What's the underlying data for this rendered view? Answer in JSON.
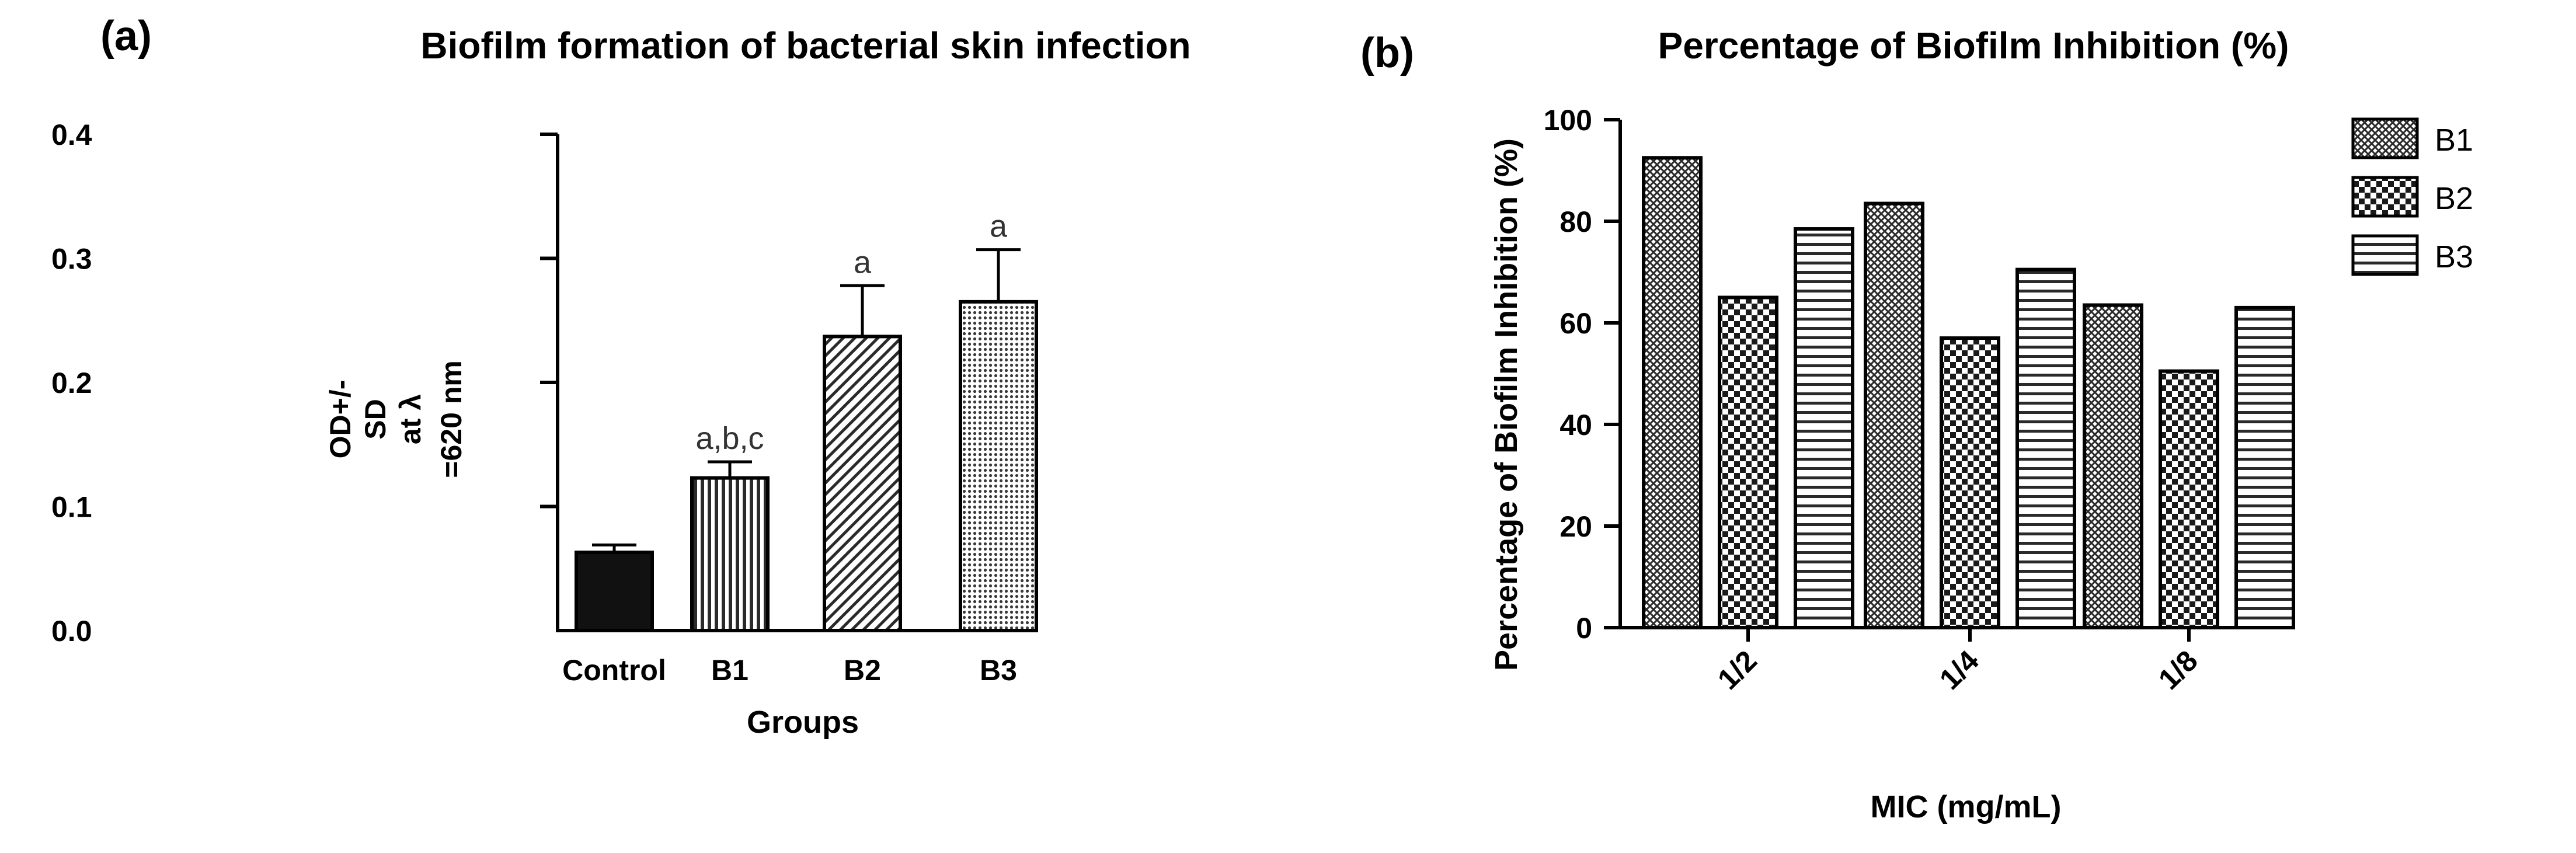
{
  "colors": {
    "ink": "#000000",
    "dark_fill": "#111111",
    "pattern_bg": "#ffffff",
    "hatch": "#2a2a2a",
    "dot": "#3a3a3a"
  },
  "chart_data": [
    {
      "panel_label": "(a)",
      "type": "bar",
      "title": "Biofilm formation of bacterial skin infection",
      "xlabel": "Groups",
      "ylabel_lines": [
        "OD+/-",
        "SD",
        "at λ",
        "=620 nm"
      ],
      "categories": [
        "Control",
        "B1",
        "B2",
        "B3"
      ],
      "values": [
        0.063,
        0.123,
        0.237,
        0.265
      ],
      "errors": [
        0.006,
        0.013,
        0.041,
        0.042
      ],
      "annotations": [
        "",
        "a,b,c",
        "a",
        "a"
      ],
      "patterns": [
        "solid",
        "vertical",
        "diagonal",
        "dotted"
      ],
      "ylim": [
        0,
        0.4
      ],
      "yticks": [
        0.0,
        0.1,
        0.2,
        0.3,
        0.4
      ],
      "ytick_labels": [
        "0.0",
        "0.1",
        "0.2",
        "0.3",
        "0.4"
      ]
    },
    {
      "panel_label": "(b)",
      "type": "bar",
      "title": "Percentage of Biofilm Inhibition (%)",
      "xlabel": "MIC (mg/mL)",
      "ylabel": "Percentage of Biofilm Inhibition (%)",
      "categories": [
        "1/2",
        "1/4",
        "1/8"
      ],
      "series": [
        {
          "name": "B1",
          "values": [
            92.5,
            83.5,
            63.5
          ],
          "pattern": "crosshatch"
        },
        {
          "name": "B2",
          "values": [
            65,
            57,
            50.5
          ],
          "pattern": "checker"
        },
        {
          "name": "B3",
          "values": [
            78.5,
            70.5,
            63
          ],
          "pattern": "horizontal"
        }
      ],
      "ylim": [
        0,
        100
      ],
      "yticks": [
        0,
        20,
        40,
        60,
        80,
        100
      ],
      "ytick_labels": [
        "0",
        "20",
        "40",
        "60",
        "80",
        "100"
      ],
      "legend_position": "top-right"
    }
  ]
}
